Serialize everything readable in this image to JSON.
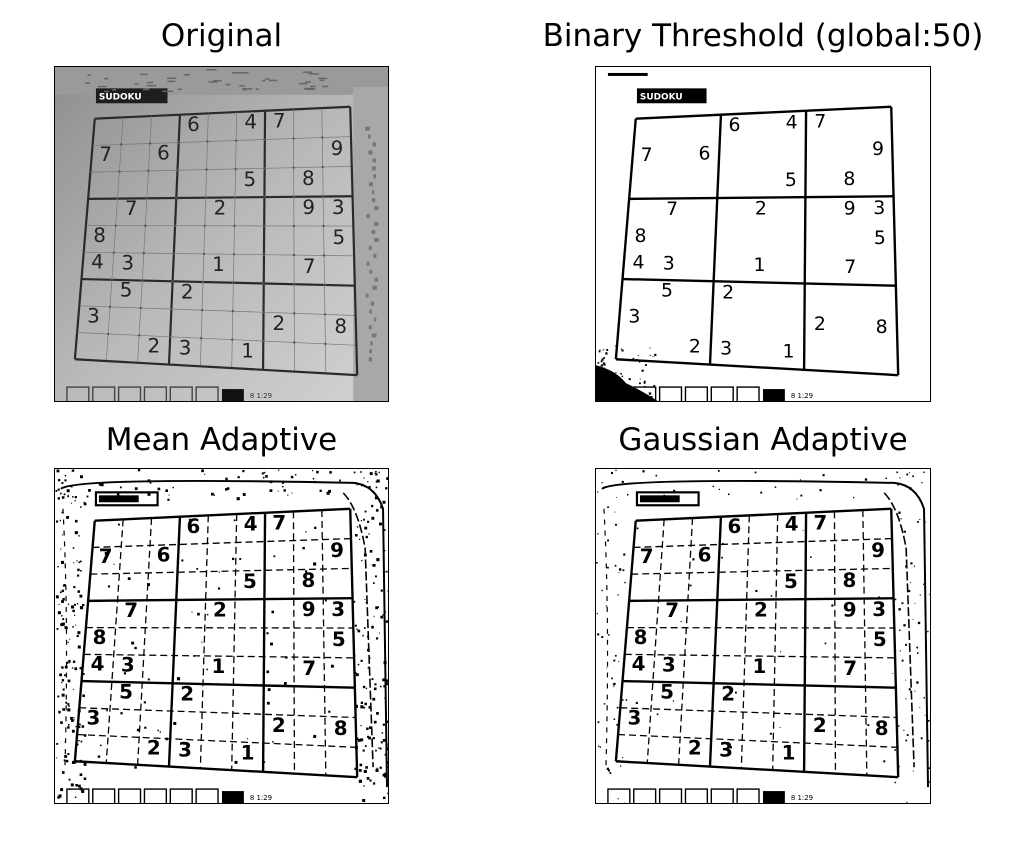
{
  "panels": [
    {
      "id": "original",
      "title": "Original"
    },
    {
      "id": "binary",
      "title": "Binary Threshold (global:50)"
    },
    {
      "id": "mean",
      "title": "Mean Adaptive"
    },
    {
      "id": "gaussian",
      "title": "Gaussian Adaptive"
    }
  ],
  "photo": {
    "logo": "SUDOKU",
    "footer": "8 1:29",
    "digits": [
      {
        "row": 0,
        "col": 3,
        "v": "6"
      },
      {
        "row": 0,
        "col": 5,
        "v": "4"
      },
      {
        "row": 0,
        "col": 6,
        "v": "7"
      },
      {
        "row": 1,
        "col": 0,
        "v": "7"
      },
      {
        "row": 1,
        "col": 2,
        "v": "6"
      },
      {
        "row": 1,
        "col": 8,
        "v": "9"
      },
      {
        "row": 2,
        "col": 5,
        "v": "5"
      },
      {
        "row": 2,
        "col": 7,
        "v": "8"
      },
      {
        "row": 3,
        "col": 1,
        "v": "7"
      },
      {
        "row": 3,
        "col": 4,
        "v": "2"
      },
      {
        "row": 3,
        "col": 7,
        "v": "9"
      },
      {
        "row": 3,
        "col": 8,
        "v": "3"
      },
      {
        "row": 4,
        "col": 0,
        "v": "8"
      },
      {
        "row": 4,
        "col": 8,
        "v": "5"
      },
      {
        "row": 5,
        "col": 0,
        "v": "4"
      },
      {
        "row": 5,
        "col": 1,
        "v": "3"
      },
      {
        "row": 5,
        "col": 4,
        "v": "1"
      },
      {
        "row": 5,
        "col": 7,
        "v": "7"
      },
      {
        "row": 6,
        "col": 1,
        "v": "5"
      },
      {
        "row": 6,
        "col": 3,
        "v": "2"
      },
      {
        "row": 7,
        "col": 0,
        "v": "3"
      },
      {
        "row": 7,
        "col": 6,
        "v": "2"
      },
      {
        "row": 7,
        "col": 8,
        "v": "8"
      },
      {
        "row": 8,
        "col": 2,
        "v": "2"
      },
      {
        "row": 8,
        "col": 3,
        "v": "3"
      },
      {
        "row": 8,
        "col": 5,
        "v": "1"
      }
    ]
  }
}
